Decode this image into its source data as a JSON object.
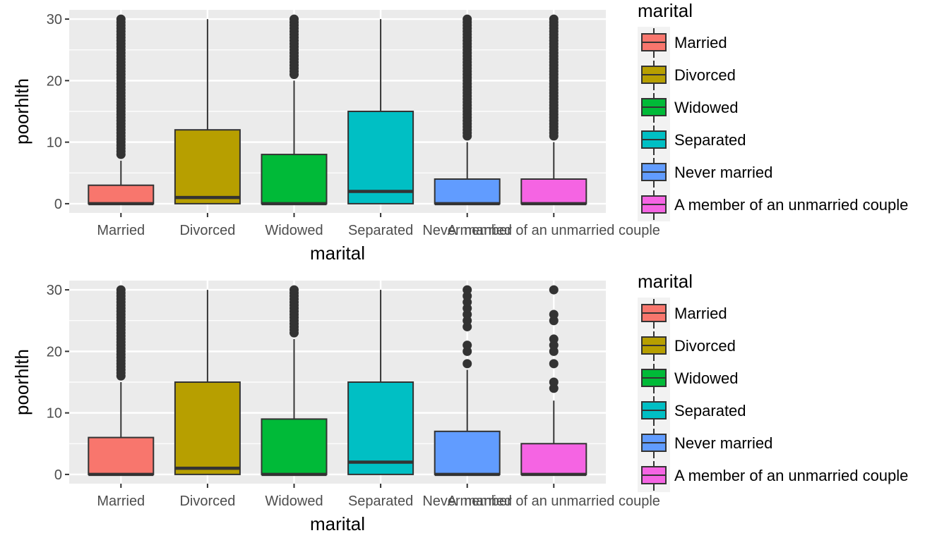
{
  "colors": {
    "panel_background": "#ebebeb",
    "grid": "#ffffff",
    "box_stroke": "#333333",
    "outlier": "#333333",
    "tick_text": "#4d4d4d",
    "tick_mark": "#333333"
  },
  "chart_data": [
    {
      "type": "boxplot",
      "xlabel": "marital",
      "ylabel": "poorhlth",
      "ylim": [
        -1.5,
        31.5
      ],
      "yticks": [
        0,
        10,
        20,
        30
      ],
      "grid": true,
      "legend": {
        "title": "marital",
        "position": "right"
      },
      "categories": [
        "Married",
        "Divorced",
        "Widowed",
        "Separated",
        "Never married",
        "A member of an unmarried couple"
      ],
      "colors": [
        "#F8766D",
        "#B79F00",
        "#00BA38",
        "#00BFC4",
        "#619CFF",
        "#F564E3"
      ],
      "boxes": [
        {
          "category": "Married",
          "lower_whisker": 0,
          "q1": 0,
          "median": 0,
          "q3": 3,
          "upper_whisker": 7,
          "outliers_from": 8,
          "outliers_to": 30
        },
        {
          "category": "Divorced",
          "lower_whisker": 0,
          "q1": 0,
          "median": 1,
          "q3": 12,
          "upper_whisker": 30,
          "outliers": []
        },
        {
          "category": "Widowed",
          "lower_whisker": 0,
          "q1": 0,
          "median": 0,
          "q3": 8,
          "upper_whisker": 20,
          "outliers_from": 21,
          "outliers_to": 30
        },
        {
          "category": "Separated",
          "lower_whisker": 0,
          "q1": 0,
          "median": 2,
          "q3": 15,
          "upper_whisker": 30,
          "outliers": []
        },
        {
          "category": "Never married",
          "lower_whisker": 0,
          "q1": 0,
          "median": 0,
          "q3": 4,
          "upper_whisker": 10,
          "outliers_from": 11,
          "outliers_to": 30
        },
        {
          "category": "A member of an unmarried couple",
          "lower_whisker": 0,
          "q1": 0,
          "median": 0,
          "q3": 4,
          "upper_whisker": 10,
          "outliers_from": 11,
          "outliers_to": 30
        }
      ]
    },
    {
      "type": "boxplot",
      "xlabel": "marital",
      "ylabel": "poorhlth",
      "ylim": [
        -1.5,
        31.5
      ],
      "yticks": [
        0,
        10,
        20,
        30
      ],
      "grid": true,
      "legend": {
        "title": "marital",
        "position": "right"
      },
      "categories": [
        "Married",
        "Divorced",
        "Widowed",
        "Separated",
        "Never married",
        "A member of an unmarried couple"
      ],
      "colors": [
        "#F8766D",
        "#B79F00",
        "#00BA38",
        "#00BFC4",
        "#619CFF",
        "#F564E3"
      ],
      "boxes": [
        {
          "category": "Married",
          "lower_whisker": 0,
          "q1": 0,
          "median": 0,
          "q3": 6,
          "upper_whisker": 15,
          "outliers_from": 16,
          "outliers_to": 30
        },
        {
          "category": "Divorced",
          "lower_whisker": 0,
          "q1": 0,
          "median": 1,
          "q3": 15,
          "upper_whisker": 30,
          "outliers": []
        },
        {
          "category": "Widowed",
          "lower_whisker": 0,
          "q1": 0,
          "median": 0,
          "q3": 9,
          "upper_whisker": 22,
          "outliers_from": 23,
          "outliers_to": 30
        },
        {
          "category": "Separated",
          "lower_whisker": 0,
          "q1": 0,
          "median": 2,
          "q3": 15,
          "upper_whisker": 30,
          "outliers": []
        },
        {
          "category": "Never married",
          "lower_whisker": 0,
          "q1": 0,
          "median": 0,
          "q3": 7,
          "upper_whisker": 17,
          "outliers": [
            18,
            20,
            21,
            24,
            25,
            26,
            27,
            28,
            29,
            30
          ]
        },
        {
          "category": "A member of an unmarried couple",
          "lower_whisker": 0,
          "q1": 0,
          "median": 0,
          "q3": 5,
          "upper_whisker": 12,
          "outliers": [
            14,
            15,
            18,
            20,
            21,
            22,
            25,
            26,
            30
          ]
        }
      ]
    }
  ]
}
